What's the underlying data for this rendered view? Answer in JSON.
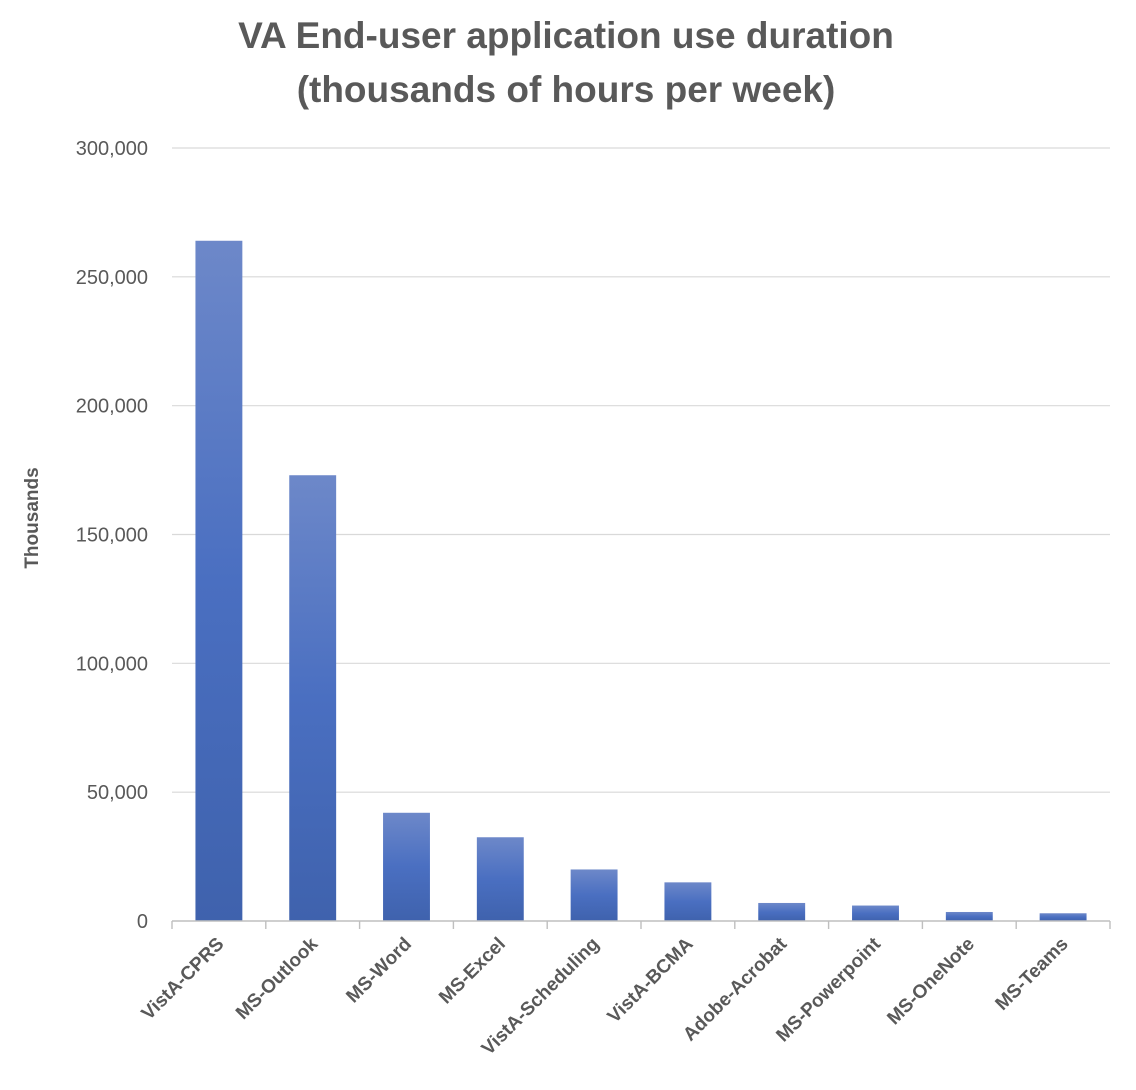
{
  "chart_data": {
    "type": "bar",
    "title": [
      "VA End-user application use duration",
      "(thousands of hours per week)"
    ],
    "ylabel": "Thousands",
    "xlabel": "",
    "ylim": [
      0,
      300000
    ],
    "yticks": [
      0,
      50000,
      100000,
      150000,
      200000,
      250000,
      300000
    ],
    "ytick_labels": [
      "0",
      "50,000",
      "100,000",
      "150,000",
      "200,000",
      "250,000",
      "300,000"
    ],
    "grid": true,
    "categories": [
      "VistA-CPRS",
      "MS-Outlook",
      "MS-Word",
      "MS-Excel",
      "VistA-Scheduling",
      "VistA-BCMA",
      "Adobe-Acrobat",
      "MS-Powerpoint",
      "MS-OneNote",
      "MS-Teams"
    ],
    "values": [
      264000,
      173000,
      42000,
      32500,
      20000,
      15000,
      7000,
      6000,
      3500,
      3000
    ],
    "colors": {
      "bar_top": "#6d88c9",
      "bar_mid": "#4a6fc1",
      "bar_bottom": "#3f62ad",
      "text": "#595959"
    }
  }
}
